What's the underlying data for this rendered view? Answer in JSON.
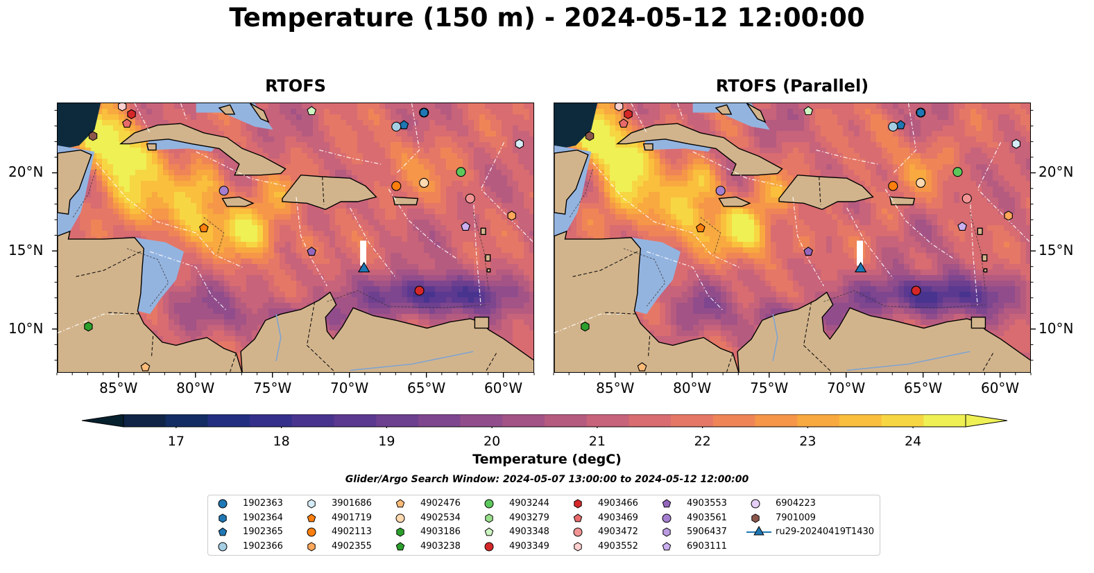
{
  "title": "Temperature (150 m) - 2024-05-12 12:00:00",
  "panels": [
    {
      "title": "RTOFS"
    },
    {
      "title": "RTOFS (Parallel)"
    }
  ],
  "axes": {
    "x_ticks": [
      "85°W",
      "80°W",
      "75°W",
      "70°W",
      "65°W",
      "60°W"
    ],
    "y_ticks": [
      "20°N",
      "15°N",
      "10°N"
    ]
  },
  "colorbar": {
    "label": "Temperature (degC)",
    "ticks": [
      "17",
      "18",
      "19",
      "20",
      "21",
      "22",
      "23",
      "24"
    ],
    "min": 16.5,
    "max": 24.5,
    "colors": [
      "#0f2447",
      "#132c63",
      "#222f80",
      "#352f8c",
      "#48348f",
      "#5b3990",
      "#6d3f8f",
      "#7e468e",
      "#914d8b",
      "#a35386",
      "#b65b80",
      "#c7637a",
      "#d86c71",
      "#e57766",
      "#ef8557",
      "#f59649",
      "#f8a93f",
      "#f9bf3d",
      "#f7d643",
      "#eef054"
    ]
  },
  "search_window": "Glider/Argo Search Window: 2024-05-07 13:00:00 to 2024-05-12 12:00:00",
  "legend": [
    {
      "id": "1902363",
      "marker": "circle",
      "color": "#1f77b4"
    },
    {
      "id": "1902364",
      "marker": "hexagon",
      "color": "#1f77b4"
    },
    {
      "id": "1902365",
      "marker": "pentagon",
      "color": "#1f77b4"
    },
    {
      "id": "1902366",
      "marker": "circle",
      "color": "#a6cee3"
    },
    {
      "id": "3901686",
      "marker": "hexagon",
      "color": "#d6ecf7"
    },
    {
      "id": "4901719",
      "marker": "pentagon",
      "color": "#ff7f0e"
    },
    {
      "id": "4902113",
      "marker": "circle",
      "color": "#ff7f0e"
    },
    {
      "id": "4902355",
      "marker": "hexagon",
      "color": "#ffa75a"
    },
    {
      "id": "4902476",
      "marker": "pentagon",
      "color": "#ffbb78"
    },
    {
      "id": "4902534",
      "marker": "circle",
      "color": "#ffd9b0"
    },
    {
      "id": "4903186",
      "marker": "hexagon",
      "color": "#2ca02c"
    },
    {
      "id": "4903238",
      "marker": "pentagon",
      "color": "#2ca02c"
    },
    {
      "id": "4903244",
      "marker": "circle",
      "color": "#5cc85c"
    },
    {
      "id": "4903279",
      "marker": "hexagon",
      "color": "#98df8a"
    },
    {
      "id": "4903348",
      "marker": "pentagon",
      "color": "#cdf5c2"
    },
    {
      "id": "4903349",
      "marker": "circle",
      "color": "#d62728"
    },
    {
      "id": "4903466",
      "marker": "hexagon",
      "color": "#d62728"
    },
    {
      "id": "4903469",
      "marker": "pentagon",
      "color": "#e86a6a"
    },
    {
      "id": "4903472",
      "marker": "circle",
      "color": "#f29494"
    },
    {
      "id": "4903552",
      "marker": "hexagon",
      "color": "#ffcfcf"
    },
    {
      "id": "4903553",
      "marker": "pentagon",
      "color": "#9467bd"
    },
    {
      "id": "4903561",
      "marker": "circle",
      "color": "#a57fcf"
    },
    {
      "id": "5906437",
      "marker": "hexagon",
      "color": "#bb9be0"
    },
    {
      "id": "6903111",
      "marker": "pentagon",
      "color": "#cbb0f0"
    },
    {
      "id": "6904223",
      "marker": "circle",
      "color": "#e6cff7"
    },
    {
      "id": "7901009",
      "marker": "hexagon",
      "color": "#8c564b"
    },
    {
      "id": "ru29-20240419T1430",
      "marker": "triangle",
      "color": "#1f77b4"
    }
  ],
  "map_markers": [
    {
      "id": "1902363",
      "lon": -65.2,
      "lat": 23.9
    },
    {
      "id": "1902364",
      "lon": -65.2,
      "lat": 23.9
    },
    {
      "id": "1902365",
      "lon": -66.5,
      "lat": 23.1
    },
    {
      "id": "1902366",
      "lon": -67.0,
      "lat": 23.0
    },
    {
      "id": "3901686",
      "lon": -59.0,
      "lat": 21.9
    },
    {
      "id": "4901719",
      "lon": -79.5,
      "lat": 16.5
    },
    {
      "id": "4902113",
      "lon": -67.0,
      "lat": 19.2
    },
    {
      "id": "4902355",
      "lon": -59.5,
      "lat": 17.3
    },
    {
      "id": "4902476",
      "lon": -83.3,
      "lat": 7.6
    },
    {
      "id": "4902534",
      "lon": -65.2,
      "lat": 19.4
    },
    {
      "id": "4903186",
      "lon": -87.0,
      "lat": 10.2
    },
    {
      "id": "4903244",
      "lon": -62.8,
      "lat": 20.1
    },
    {
      "id": "4903348",
      "lon": -72.5,
      "lat": 24.0
    },
    {
      "id": "4903349",
      "lon": -65.5,
      "lat": 12.5
    },
    {
      "id": "4903466",
      "lon": -84.2,
      "lat": 23.8
    },
    {
      "id": "4903469",
      "lon": -84.5,
      "lat": 23.2
    },
    {
      "id": "4903472",
      "lon": -62.2,
      "lat": 18.4
    },
    {
      "id": "4903552",
      "lon": -84.8,
      "lat": 24.3
    },
    {
      "id": "4903553",
      "lon": -72.5,
      "lat": 15.0
    },
    {
      "id": "4903561",
      "lon": -78.2,
      "lat": 18.9
    },
    {
      "id": "6903111",
      "lon": -62.5,
      "lat": 16.6
    },
    {
      "id": "7901009",
      "lon": -86.7,
      "lat": 22.4
    },
    {
      "id": "ru29-20240419T1430",
      "lon": -69.1,
      "lat": 13.9
    }
  ]
}
